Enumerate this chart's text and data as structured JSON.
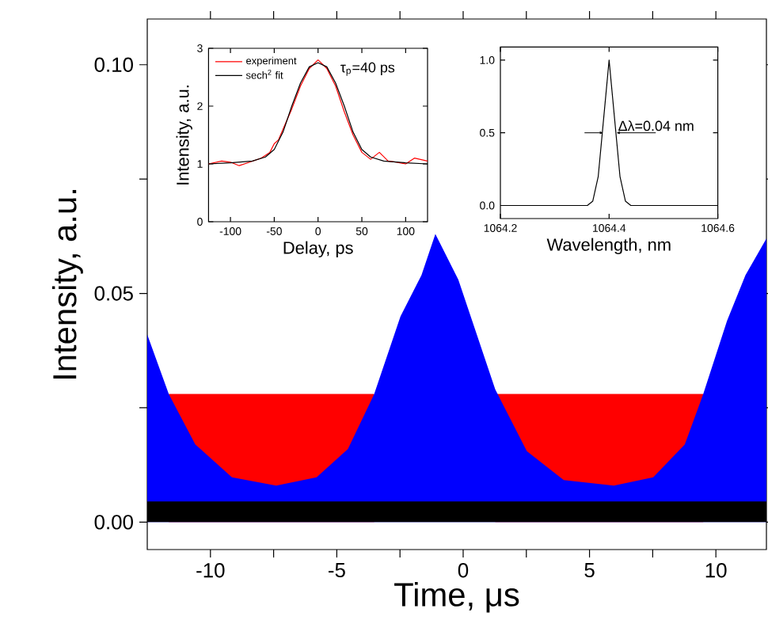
{
  "chart_data": [
    {
      "type": "area",
      "xlabel": "Time, μs",
      "ylabel": "Intensity, a.u.",
      "xlim": [
        -12.5,
        12
      ],
      "ylim": [
        -0.006,
        0.11
      ],
      "xticks": [
        {
          "value": -10,
          "label": "-10"
        },
        {
          "value": -7.5,
          "label": null
        },
        {
          "value": -5,
          "label": "-5"
        },
        {
          "value": -2.5,
          "label": null
        },
        0,
        {
          "value": 2.5,
          "label": null
        },
        5,
        {
          "value": 7.5,
          "label": null
        },
        10
      ],
      "yticks": [
        {
          "value": 0,
          "label": "0.00"
        },
        {
          "value": 0.025,
          "label": null
        },
        {
          "value": 0.05,
          "label": "0.05"
        },
        {
          "value": 0.075,
          "label": null
        },
        {
          "value": 0.1,
          "label": "0.10"
        }
      ],
      "series": [
        {
          "color": "#ff0000",
          "x": [
            -11.65,
            -3.52
          ],
          "values": [
            0.028,
            0.028
          ]
        },
        {
          "color": "#ff0000",
          "x": [
            1.27,
            9.5
          ],
          "values": [
            0.028,
            0.028
          ]
        },
        {
          "color": "#0000ff",
          "x": [
            -12.5,
            -11.65,
            -10.6,
            -9.15,
            -7.4,
            -5.8,
            -4.56,
            -3.52,
            -2.48,
            -1.65,
            -1.1,
            -0.19,
            1.27,
            2.52,
            3.98,
            5.96,
            7.52,
            8.77,
            9.5,
            10.44,
            11.17,
            12
          ],
          "values": [
            0.041,
            0.028,
            0.017,
            0.0098,
            0.008,
            0.0098,
            0.016,
            0.028,
            0.045,
            0.054,
            0.063,
            0.053,
            0.029,
            0.0155,
            0.0092,
            0.008,
            0.0098,
            0.017,
            0.028,
            0.044,
            0.054,
            0.062
          ]
        },
        {
          "color": "#000000",
          "x": [
            -12.5,
            12
          ],
          "values": [
            0.0045,
            0.0045
          ]
        }
      ]
    },
    {
      "type": "line",
      "xlabel": "Delay, ps",
      "ylabel": "Intensity, a.u.",
      "xlim": [
        -125,
        125
      ],
      "ylim": [
        0,
        3
      ],
      "xticks": [
        -100,
        -50,
        0,
        50,
        100
      ],
      "yticks": [
        0,
        1,
        2,
        3
      ],
      "legend": "top left",
      "marker": "none",
      "annotations": [
        "τ$_{p}$=40 ps"
      ],
      "series": [
        {
          "name": "experiment",
          "color": "#ff0000",
          "x": [
            -125,
            -110,
            -100,
            -90,
            -80,
            -65,
            -55,
            -50,
            -45,
            -40,
            -30,
            -20,
            -10,
            0,
            10,
            20,
            30,
            40,
            50,
            60,
            70,
            80,
            90,
            100,
            110,
            125
          ],
          "values": [
            1.0,
            1.05,
            1.03,
            0.97,
            1.02,
            1.1,
            1.2,
            1.35,
            1.42,
            1.6,
            1.95,
            2.35,
            2.65,
            2.8,
            2.65,
            2.35,
            1.9,
            1.5,
            1.2,
            1.08,
            1.2,
            1.05,
            1.03,
            1.0,
            1.1,
            1.05
          ]
        },
        {
          "name": "sech$^{2}$ fit",
          "color": "#000000",
          "x": [
            -125,
            -100,
            -75,
            -60,
            -50,
            -40,
            -30,
            -20,
            -10,
            0,
            10,
            20,
            30,
            40,
            50,
            60,
            75,
            100,
            125
          ],
          "values": [
            1.0,
            1.02,
            1.05,
            1.12,
            1.25,
            1.55,
            2.0,
            2.4,
            2.68,
            2.75,
            2.68,
            2.4,
            2.0,
            1.55,
            1.25,
            1.12,
            1.05,
            1.02,
            1.0
          ]
        }
      ]
    },
    {
      "type": "line",
      "xlabel": "Wavelength, nm",
      "xlim": [
        1064.2,
        1064.6
      ],
      "ylim": [
        -0.09,
        1.09
      ],
      "xticks": [
        1064.2,
        1064.4,
        1064.6
      ],
      "yticks": [
        {
          "value": 0,
          "label": "0.0"
        },
        {
          "value": 0.5,
          "label": "0.5"
        },
        {
          "value": 1,
          "label": "1.0"
        }
      ],
      "marker": "none",
      "annotations": [
        {
          "text": "Δλ=0.04 nm",
          "x": 1064.413,
          "y": 0.5
        }
      ],
      "series": [
        {
          "color": "#000000",
          "x": [
            1064.2,
            1064.36,
            1064.37,
            1064.38,
            1064.39,
            1064.4,
            1064.41,
            1064.42,
            1064.43,
            1064.44,
            1064.6
          ],
          "values": [
            0,
            0,
            0.03,
            0.2,
            0.6,
            1.0,
            0.6,
            0.2,
            0.03,
            0,
            0
          ]
        }
      ]
    }
  ]
}
